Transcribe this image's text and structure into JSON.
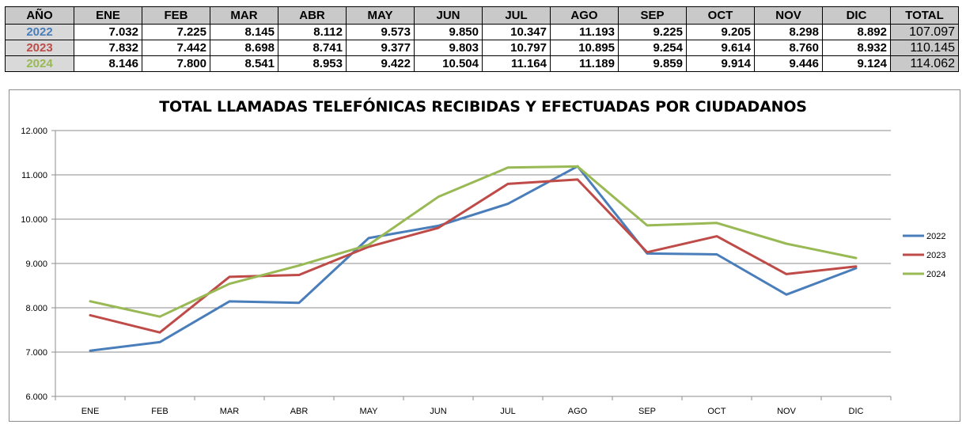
{
  "table": {
    "year_header": "AÑO",
    "total_header": "TOTAL",
    "months": [
      "ENE",
      "FEB",
      "MAR",
      "ABR",
      "MAY",
      "JUN",
      "JUL",
      "AGO",
      "SEP",
      "OCT",
      "NOV",
      "DIC"
    ],
    "rows": [
      {
        "year": "2022",
        "color": "#4a7ebb",
        "values": [
          "7.032",
          "7.225",
          "8.145",
          "8.112",
          "9.573",
          "9.850",
          "10.347",
          "11.193",
          "9.225",
          "9.205",
          "8.298",
          "8.892"
        ],
        "total": "107.097"
      },
      {
        "year": "2023",
        "color": "#be4b48",
        "values": [
          "7.832",
          "7.442",
          "8.698",
          "8.741",
          "9.377",
          "9.803",
          "10.797",
          "10.895",
          "9.254",
          "9.614",
          "8.760",
          "8.932"
        ],
        "total": "110.145"
      },
      {
        "year": "2024",
        "color": "#98b954",
        "values": [
          "8.146",
          "7.800",
          "8.541",
          "8.953",
          "9.422",
          "10.504",
          "11.164",
          "11.189",
          "9.859",
          "9.914",
          "9.446",
          "9.124"
        ],
        "total": "114.062"
      }
    ]
  },
  "chart_data": {
    "type": "line",
    "title": "TOTAL LLAMADAS TELEFÓNICAS RECIBIDAS  Y EFECTUADAS POR CIUDADANOS",
    "categories": [
      "ENE",
      "FEB",
      "MAR",
      "ABR",
      "MAY",
      "JUN",
      "JUL",
      "AGO",
      "SEP",
      "OCT",
      "NOV",
      "DIC"
    ],
    "ylim": [
      6000,
      12000
    ],
    "yticks": [
      6000,
      7000,
      8000,
      9000,
      10000,
      11000,
      12000
    ],
    "ytick_labels": [
      "6.000",
      "7.000",
      "8.000",
      "9.000",
      "10.000",
      "11.000",
      "12.000"
    ],
    "grid": true,
    "legend_position": "right",
    "series": [
      {
        "name": "2022",
        "color": "#4a7ebb",
        "values": [
          7032,
          7225,
          8145,
          8112,
          9573,
          9850,
          10347,
          11193,
          9225,
          9205,
          8298,
          8892
        ]
      },
      {
        "name": "2023",
        "color": "#be4b48",
        "values": [
          7832,
          7442,
          8698,
          8741,
          9377,
          9803,
          10797,
          10895,
          9254,
          9614,
          8760,
          8932
        ]
      },
      {
        "name": "2024",
        "color": "#98b954",
        "values": [
          8146,
          7800,
          8541,
          8953,
          9422,
          10504,
          11164,
          11189,
          9859,
          9914,
          9446,
          9124
        ]
      }
    ]
  }
}
